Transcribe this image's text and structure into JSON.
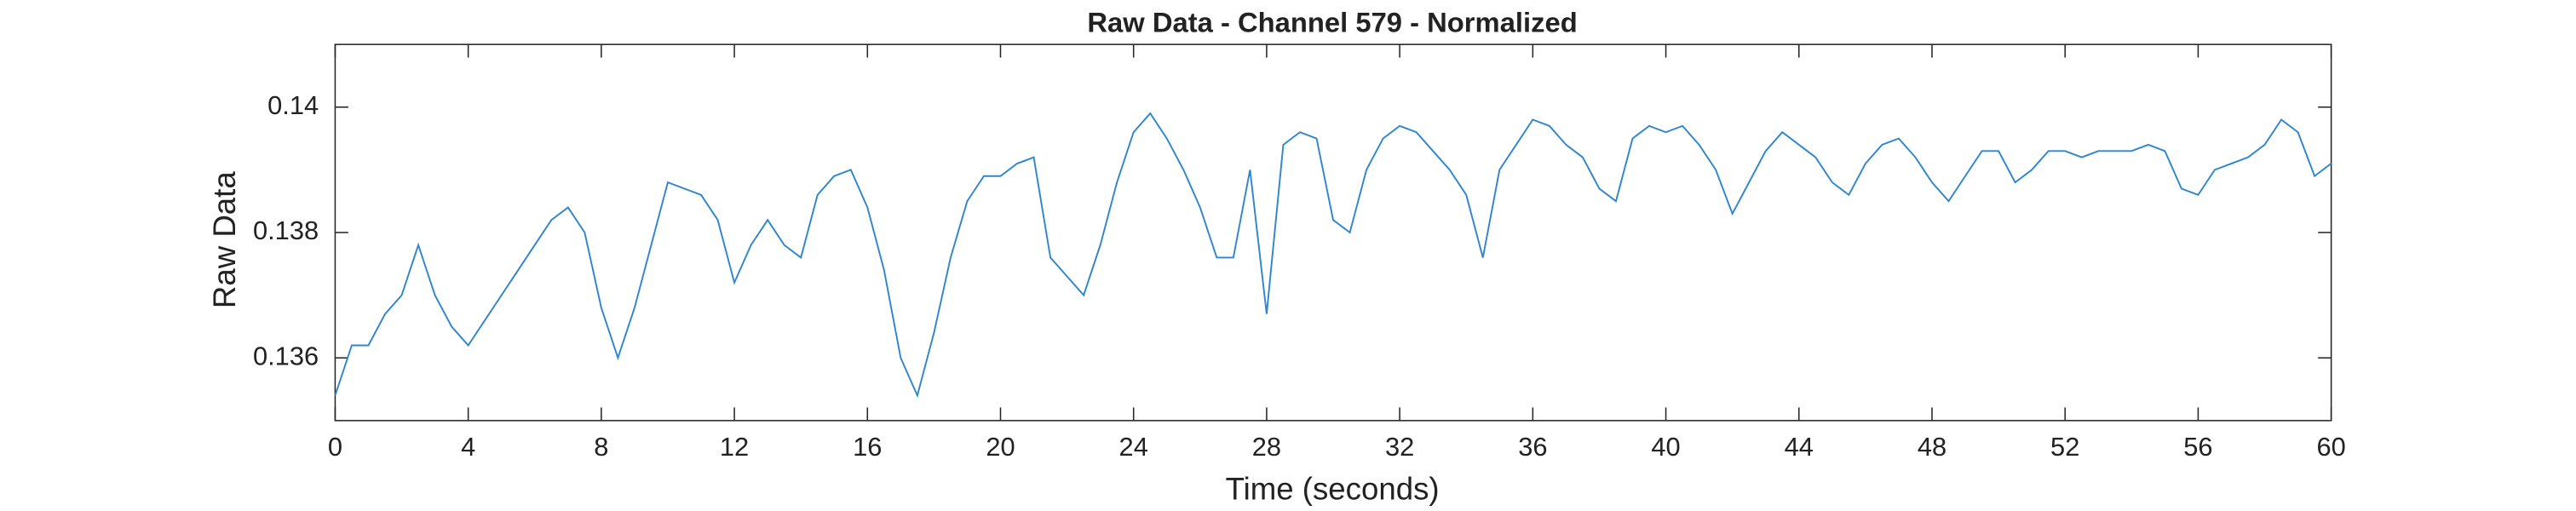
{
  "chart_data": {
    "type": "line",
    "title": "Raw Data - Channel 579 - Normalized",
    "xlabel": "Time (seconds)",
    "ylabel": "Raw Data",
    "color": "#2f86cf",
    "xlim": [
      0,
      60
    ],
    "xticks": [
      0,
      4,
      8,
      12,
      16,
      20,
      24,
      28,
      32,
      36,
      40,
      44,
      48,
      52,
      56,
      60
    ],
    "ylim": [
      0.135,
      0.141
    ],
    "yticks": [
      0.136,
      0.138,
      0.14
    ],
    "x": [
      0,
      0.5,
      1,
      1.5,
      2,
      2.5,
      3,
      3.5,
      4,
      4.5,
      5,
      5.5,
      6,
      6.5,
      7,
      7.5,
      8,
      8.5,
      9,
      9.5,
      10,
      10.5,
      11,
      11.5,
      12,
      12.5,
      13,
      13.5,
      14,
      14.5,
      15,
      15.5,
      16,
      16.5,
      17,
      17.5,
      18,
      18.5,
      19,
      19.5,
      20,
      20.5,
      21,
      21.5,
      22,
      22.5,
      23,
      23.5,
      24,
      24.5,
      25,
      25.5,
      26,
      26.5,
      27,
      27.5,
      28,
      28.5,
      29,
      29.5,
      30,
      30.5,
      31,
      31.5,
      32,
      32.5,
      33,
      33.5,
      34,
      34.5,
      35,
      35.5,
      36,
      36.5,
      37,
      37.5,
      38,
      38.5,
      39,
      39.5,
      40,
      40.5,
      41,
      41.5,
      42,
      42.5,
      43,
      43.5,
      44,
      44.5,
      45,
      45.5,
      46,
      46.5,
      47,
      47.5,
      48,
      48.5,
      49,
      49.5,
      50,
      50.5,
      51,
      51.5,
      52,
      52.5,
      53,
      53.5,
      54,
      54.5,
      55,
      55.5,
      56,
      56.5,
      57,
      57.5,
      58,
      58.5,
      59,
      59.5,
      60
    ],
    "values": [
      0.1354,
      0.1362,
      0.1362,
      0.1367,
      0.137,
      0.1378,
      0.137,
      0.1365,
      0.1362,
      0.1366,
      0.137,
      0.1374,
      0.1378,
      0.1382,
      0.1384,
      0.138,
      0.1368,
      0.136,
      0.1368,
      0.1378,
      0.1388,
      0.1387,
      0.1386,
      0.1382,
      0.1372,
      0.1378,
      0.1382,
      0.1378,
      0.1376,
      0.1386,
      0.1389,
      0.139,
      0.1384,
      0.1374,
      0.136,
      0.1354,
      0.1364,
      0.1376,
      0.1385,
      0.1389,
      0.1389,
      0.1391,
      0.1392,
      0.1376,
      0.1373,
      0.137,
      0.1378,
      0.1388,
      0.1396,
      0.1399,
      0.1395,
      0.139,
      0.1384,
      0.1376,
      0.1376,
      0.139,
      0.1367,
      0.1394,
      0.1396,
      0.1395,
      0.1382,
      0.138,
      0.139,
      0.1395,
      0.1397,
      0.1396,
      0.1393,
      0.139,
      0.1386,
      0.1376,
      0.139,
      0.1394,
      0.1398,
      0.1397,
      0.1394,
      0.1392,
      0.1387,
      0.1385,
      0.1395,
      0.1397,
      0.1396,
      0.1397,
      0.1394,
      0.139,
      0.1383,
      0.1388,
      0.1393,
      0.1396,
      0.1394,
      0.1392,
      0.1388,
      0.1386,
      0.1391,
      0.1394,
      0.1395,
      0.1392,
      0.1388,
      0.1385,
      0.1389,
      0.1393,
      0.1393,
      0.1388,
      0.139,
      0.1393,
      0.1393,
      0.1392,
      0.1393,
      0.1393,
      0.1393,
      0.1394,
      0.1393,
      0.1387,
      0.1386,
      0.139,
      0.1391,
      0.1392,
      0.1394,
      0.1398,
      0.1396,
      0.1389,
      0.1391
    ]
  }
}
